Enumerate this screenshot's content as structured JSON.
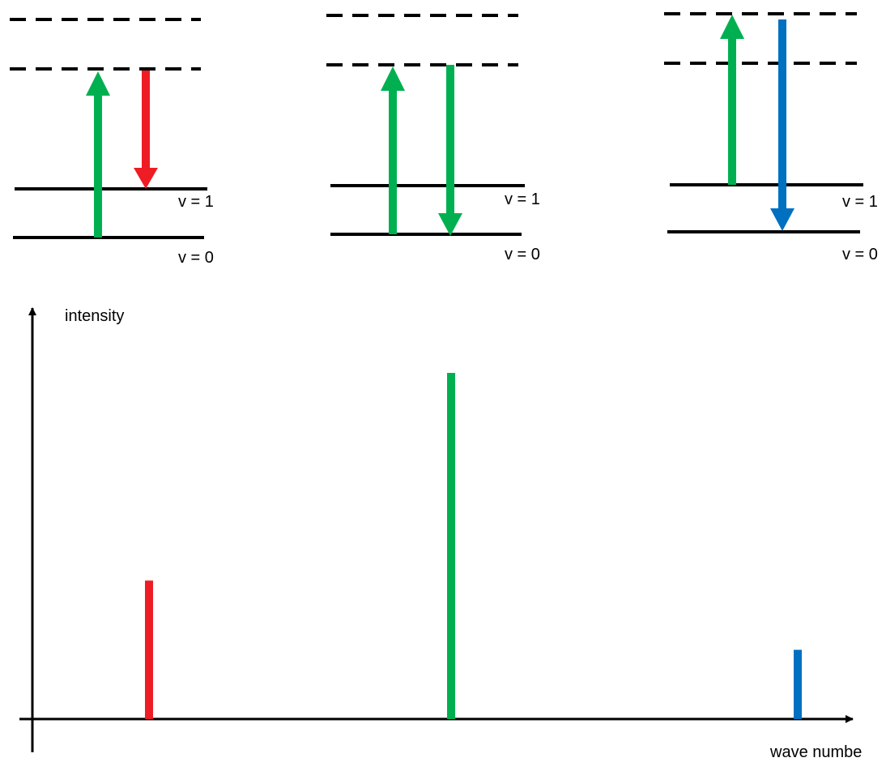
{
  "colors": {
    "red": "#ee1c25",
    "green": "#00b050",
    "blue": "#0070c0",
    "black": "#000000"
  },
  "panels": [
    {
      "name": "stokes",
      "level_labels": {
        "v1": "v = 1",
        "v0": "v = 0"
      },
      "excitation_color": "green",
      "emission_color": "red"
    },
    {
      "name": "rayleigh",
      "level_labels": {
        "v1": "v = 1",
        "v0": "v = 0"
      },
      "excitation_color": "green",
      "emission_color": "green"
    },
    {
      "name": "anti-stokes",
      "level_labels": {
        "v1": "v = 1",
        "v0": "v = 0"
      },
      "excitation_color": "green",
      "emission_color": "blue"
    }
  ],
  "chart_data": {
    "type": "bar",
    "ylabel": "intensity",
    "xlabel": "wave numbe",
    "series": [
      {
        "color": "red",
        "relative_intensity": 0.4
      },
      {
        "color": "green",
        "relative_intensity": 1.0
      },
      {
        "color": "blue",
        "relative_intensity": 0.2
      }
    ]
  }
}
